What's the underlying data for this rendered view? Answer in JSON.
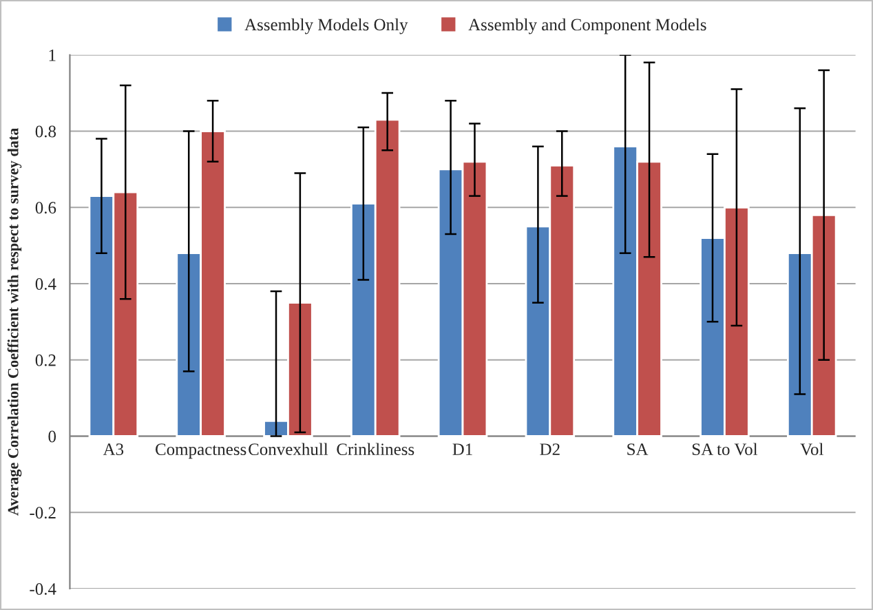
{
  "chart_data": {
    "type": "bar",
    "ylabel": "Average Correlation Coefficient with respect to survey data",
    "categories": [
      "A3",
      "Compactness",
      "Convexhull",
      "Crinkliness",
      "D1",
      "D2",
      "SA",
      "SA to Vol",
      "Vol"
    ],
    "series": [
      {
        "name": "Assembly Models Only",
        "color": "#4f81bd",
        "values": [
          0.63,
          0.48,
          0.04,
          0.61,
          0.7,
          0.55,
          0.76,
          0.52,
          0.48
        ],
        "errors": [
          [
            0.48,
            0.78
          ],
          [
            0.17,
            0.8
          ],
          [
            0.0,
            0.38
          ],
          [
            0.41,
            0.81
          ],
          [
            0.53,
            0.88
          ],
          [
            0.35,
            0.76
          ],
          [
            0.48,
            1.0
          ],
          [
            0.3,
            0.74
          ],
          [
            0.11,
            0.86
          ]
        ]
      },
      {
        "name": "Assembly and Component Models",
        "color": "#c0504d",
        "values": [
          0.64,
          0.8,
          0.35,
          0.83,
          0.72,
          0.71,
          0.72,
          0.6,
          0.58
        ],
        "errors": [
          [
            0.36,
            0.92
          ],
          [
            0.72,
            0.88
          ],
          [
            0.01,
            0.69
          ],
          [
            0.75,
            0.9
          ],
          [
            0.63,
            0.82
          ],
          [
            0.63,
            0.8
          ],
          [
            0.47,
            0.98
          ],
          [
            0.29,
            0.91
          ],
          [
            0.2,
            0.96
          ]
        ]
      }
    ],
    "ylim": [
      -0.4,
      1
    ],
    "yticks": [
      -0.4,
      -0.2,
      0,
      0.2,
      0.4,
      0.6,
      0.8,
      1
    ],
    "grid": "y",
    "legend": "top"
  }
}
